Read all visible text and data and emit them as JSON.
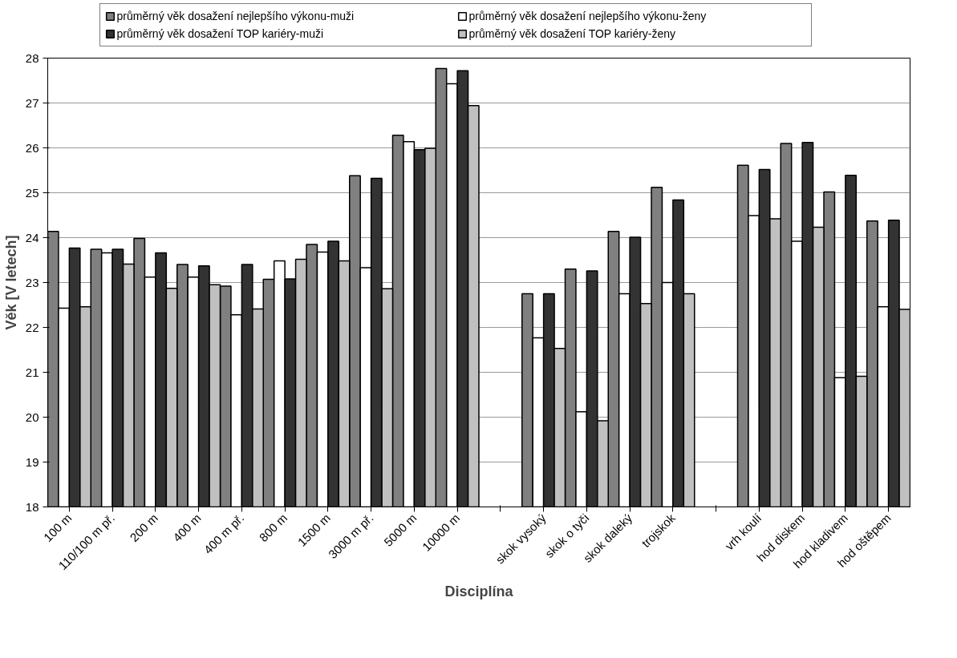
{
  "chart_data": {
    "type": "bar",
    "xlabel": "Disciplína",
    "ylabel": "Věk [V letech]",
    "categories": [
      "100 m",
      "110/100 m př.",
      "200 m",
      "400 m",
      "400 m př.",
      "800 m",
      "1500 m",
      "3000 m př.",
      "5000 m",
      "10000 m",
      null,
      "skok vysoký",
      "skok o tyči",
      "skok daleký",
      "trojskok",
      null,
      "vrh koulí",
      "hod diskem",
      "hod kladivem",
      "hod oštěpem"
    ],
    "series": [
      {
        "name": "průměrný věk dosažení nejlepšího výkonu-muži",
        "color": "#808080",
        "values": [
          24.14,
          23.74,
          23.98,
          23.4,
          22.92,
          23.07,
          23.85,
          25.38,
          26.28,
          27.77,
          null,
          22.75,
          23.3,
          24.14,
          25.12,
          null,
          25.61,
          26.1,
          25.02,
          24.37
        ]
      },
      {
        "name": "průměrný věk dosažení nejlepšího výkonu-ženy",
        "color": "#ffffff",
        "values": [
          22.43,
          23.66,
          23.12,
          23.12,
          22.28,
          23.48,
          23.68,
          23.33,
          26.14,
          27.43,
          null,
          21.77,
          20.12,
          22.75,
          23.0,
          null,
          24.49,
          23.92,
          20.88,
          22.46
        ]
      },
      {
        "name": "průměrný věk dosažení TOP kariéry-muži",
        "color": "#333333",
        "values": [
          23.77,
          23.74,
          23.66,
          23.37,
          23.4,
          23.08,
          23.92,
          25.32,
          25.96,
          27.72,
          null,
          22.75,
          23.26,
          24.01,
          24.84,
          null,
          25.52,
          26.12,
          25.39,
          24.39
        ]
      },
      {
        "name": "průměrný věk dosažení TOP kariéry-ženy",
        "color": "#c0c0c0",
        "values": [
          22.46,
          23.41,
          22.87,
          22.95,
          22.41,
          23.52,
          23.48,
          22.86,
          25.99,
          26.94,
          null,
          21.53,
          19.92,
          22.53,
          22.75,
          null,
          24.42,
          24.23,
          20.91,
          22.4
        ]
      }
    ],
    "ylim": [
      18,
      28
    ],
    "yticks": [
      18,
      19,
      20,
      21,
      22,
      23,
      24,
      25,
      26,
      27,
      28
    ],
    "grid": "y",
    "legend": "top"
  }
}
